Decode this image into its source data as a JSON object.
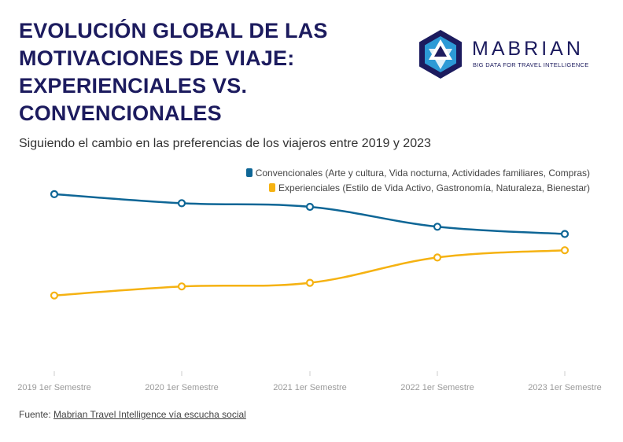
{
  "header": {
    "title": "EVOLUCIÓN GLOBAL DE LAS MOTIVACIONES DE VIAJE: EXPERIENCIALES VS. CONVENCIONALES",
    "subtitle": "Siguiendo el cambio en las preferencias de los viajeros entre 2019 y 2023"
  },
  "logo": {
    "name": "MABRIAN",
    "tagline": "BIG DATA FOR TRAVEL INTELLIGENCE",
    "icon": "hexagon-star-logo-icon",
    "colors": {
      "dark": "#1c1b5e",
      "light": "#2c9ad6"
    }
  },
  "footer": {
    "source_label": "Fuente:",
    "source_link": "Mabrian Travel Intelligence vía escucha social"
  },
  "chart_data": {
    "type": "line",
    "categories": [
      "2019 1er Semestre",
      "2020 1er Semestre",
      "2021 1er Semestre",
      "2022 1er Semestre",
      "2023 1er Semestre"
    ],
    "series": [
      {
        "name": "Convencionales (Arte y cultura, Vida nocturna, Actividades familiares, Compras)",
        "color": "#0e6696",
        "values": [
          63.5,
          61.0,
          60.0,
          54.5,
          52.5
        ]
      },
      {
        "name": "Experienciales (Estilo de Vida Activo, Gastronomía, Naturaleza, Bienestar)",
        "color": "#f5b212",
        "values": [
          35.5,
          38.0,
          39.0,
          46.0,
          48.0
        ]
      }
    ],
    "ylim": [
      15,
      65
    ],
    "grid": false,
    "legend_position": "top-right",
    "xlabel": "",
    "ylabel": ""
  }
}
